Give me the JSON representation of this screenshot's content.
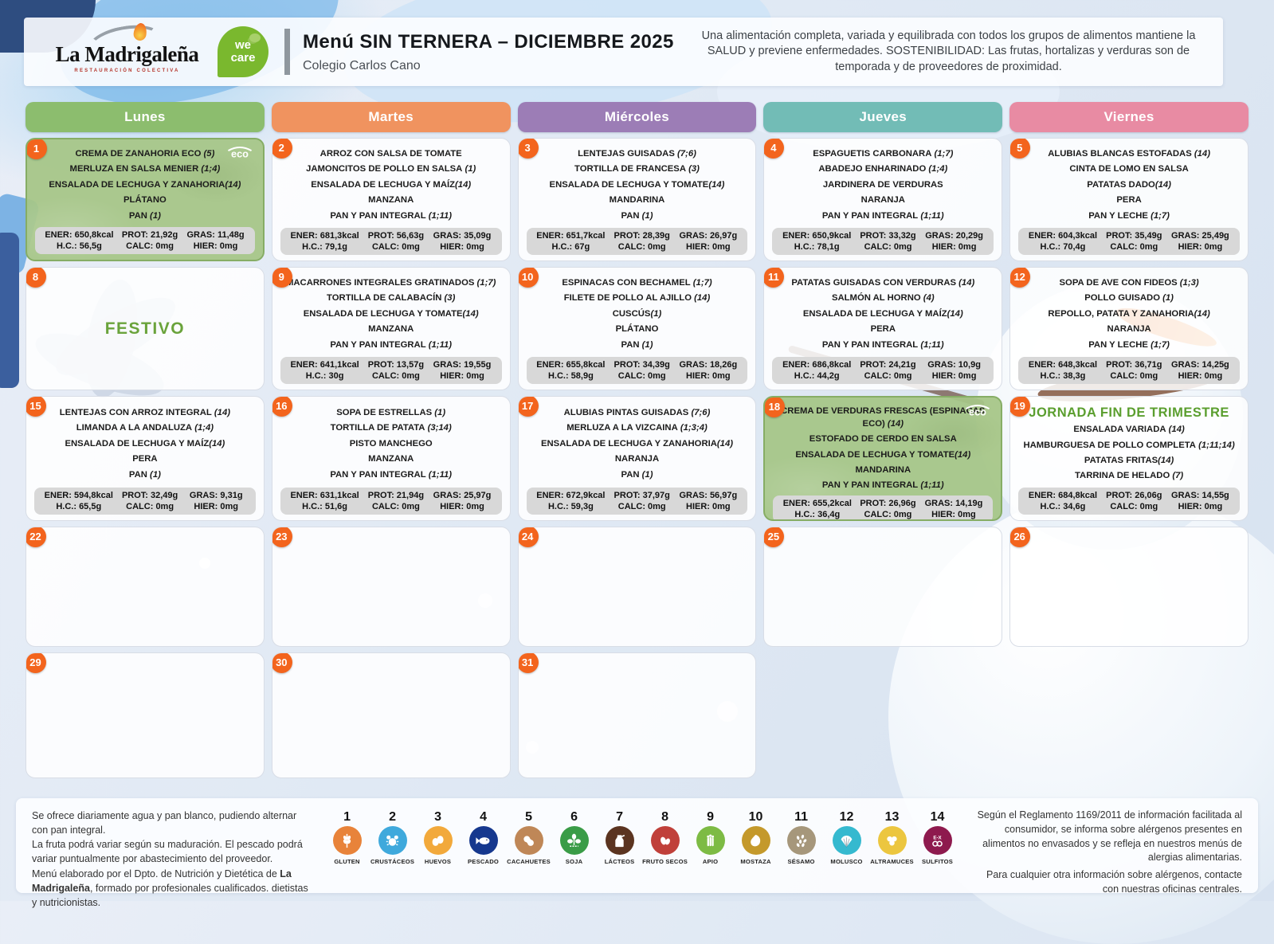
{
  "header": {
    "brand": "La Madrigaleña",
    "brand_tagline": "RESTAURACIÓN COLECTIVA",
    "we_care_line1": "we",
    "we_care_line2": "care",
    "title": "Menú SIN TERNERA – DICIEMBRE 2025",
    "subtitle": "Colegio Carlos Cano",
    "info_text": "Una alimentación completa, variada y equilibrada con todos los grupos de alimentos mantiene la SALUD y previene enfermedades. SOSTENIBILIDAD: Las frutas, hortalizas y verduras son de temporada y de proveedores de proximidad."
  },
  "calendar": {
    "eco_label": "eco",
    "weekdays": [
      {
        "label": "Lunes",
        "color": "#8cbd6e"
      },
      {
        "label": "Martes",
        "color": "#f0935f"
      },
      {
        "label": "Miércoles",
        "color": "#9c7db6"
      },
      {
        "label": "Jueves",
        "color": "#72bcb6"
      },
      {
        "label": "Viernes",
        "color": "#e88ba3"
      }
    ],
    "weeks": [
      [
        {
          "day": "1",
          "eco": true,
          "items": [
            {
              "t": "CREMA DE ZANAHORIA ECO",
              "a": " (5)"
            },
            {
              "t": "MERLUZA EN SALSA MENIER",
              "a": " (1;4)"
            },
            {
              "t": "ENSALADA DE LECHUGA Y ZANAHORIA",
              "a": "(14)"
            },
            {
              "t": "PLÁTANO",
              "a": ""
            },
            {
              "t": "PAN",
              "a": " (1)"
            }
          ],
          "nutrition": [
            "ENER: 650,8kcal",
            "PROT: 21,92g",
            "GRAS: 11,48g",
            "H.C.: 56,5g",
            "CALC: 0mg",
            "HIER: 0mg"
          ]
        },
        {
          "day": "2",
          "items": [
            {
              "t": "ARROZ CON SALSA DE TOMATE",
              "a": ""
            },
            {
              "t": "JAMONCITOS DE POLLO EN SALSA",
              "a": " (1)"
            },
            {
              "t": "ENSALADA DE LECHUGA Y MAÍZ",
              "a": "(14)"
            },
            {
              "t": "MANZANA",
              "a": ""
            },
            {
              "t": "PAN Y PAN INTEGRAL",
              "a": " (1;11)"
            }
          ],
          "nutrition": [
            "ENER: 681,3kcal",
            "PROT: 56,63g",
            "GRAS: 35,09g",
            "H.C.: 79,1g",
            "CALC: 0mg",
            "HIER: 0mg"
          ]
        },
        {
          "day": "3",
          "items": [
            {
              "t": "LENTEJAS GUISADAS",
              "a": " (7;6)"
            },
            {
              "t": "TORTILLA DE FRANCESA",
              "a": " (3)"
            },
            {
              "t": "ENSALADA DE LECHUGA Y TOMATE",
              "a": "(14)"
            },
            {
              "t": "MANDARINA",
              "a": ""
            },
            {
              "t": "PAN",
              "a": " (1)"
            }
          ],
          "nutrition": [
            "ENER: 651,7kcal",
            "PROT: 28,39g",
            "GRAS: 26,97g",
            "H.C.: 67g",
            "CALC: 0mg",
            "HIER: 0mg"
          ]
        },
        {
          "day": "4",
          "items": [
            {
              "t": "ESPAGUETIS CARBONARA",
              "a": " (1;7)"
            },
            {
              "t": "ABADEJO ENHARINADO",
              "a": " (1;4)"
            },
            {
              "t": "JARDINERA DE VERDURAS",
              "a": ""
            },
            {
              "t": "NARANJA",
              "a": ""
            },
            {
              "t": "PAN Y PAN INTEGRAL",
              "a": " (1;11)"
            }
          ],
          "nutrition": [
            "ENER: 650,9kcal",
            "PROT: 33,32g",
            "GRAS: 20,29g",
            "H.C.: 78,1g",
            "CALC: 0mg",
            "HIER: 0mg"
          ]
        },
        {
          "day": "5",
          "items": [
            {
              "t": "ALUBIAS BLANCAS ESTOFADAS",
              "a": " (14)"
            },
            {
              "t": "CINTA DE LOMO EN SALSA",
              "a": ""
            },
            {
              "t": "PATATAS DADO",
              "a": "(14)"
            },
            {
              "t": "PERA",
              "a": ""
            },
            {
              "t": "PAN Y LECHE",
              "a": " (1;7)"
            }
          ],
          "nutrition": [
            "ENER: 604,3kcal",
            "PROT: 35,49g",
            "GRAS: 25,49g",
            "H.C.: 70,4g",
            "CALC: 0mg",
            "HIER: 0mg"
          ]
        }
      ],
      [
        {
          "day": "8",
          "special": "FESTIVO"
        },
        {
          "day": "9",
          "items": [
            {
              "t": "MACARRONES INTEGRALES GRATINADOS",
              "a": " (1;7)"
            },
            {
              "t": "TORTILLA DE CALABACÍN",
              "a": " (3)"
            },
            {
              "t": "ENSALADA DE LECHUGA Y TOMATE",
              "a": "(14)"
            },
            {
              "t": "MANZANA",
              "a": ""
            },
            {
              "t": "PAN Y PAN INTEGRAL",
              "a": " (1;11)"
            }
          ],
          "nutrition": [
            "ENER: 641,1kcal",
            "PROT: 13,57g",
            "GRAS: 19,55g",
            "H.C.: 30g",
            "CALC: 0mg",
            "HIER: 0mg"
          ]
        },
        {
          "day": "10",
          "items": [
            {
              "t": "ESPINACAS CON BECHAMEL",
              "a": " (1;7)"
            },
            {
              "t": "FILETE DE POLLO AL AJILLO",
              "a": " (14)"
            },
            {
              "t": "CUSCÚS",
              "a": "(1)"
            },
            {
              "t": "PLÁTANO",
              "a": ""
            },
            {
              "t": "PAN",
              "a": " (1)"
            }
          ],
          "nutrition": [
            "ENER: 655,8kcal",
            "PROT: 34,39g",
            "GRAS: 18,26g",
            "H.C.: 58,9g",
            "CALC: 0mg",
            "HIER: 0mg"
          ]
        },
        {
          "day": "11",
          "items": [
            {
              "t": "PATATAS GUISADAS CON VERDURAS",
              "a": " (14)"
            },
            {
              "t": "SALMÓN AL HORNO",
              "a": " (4)"
            },
            {
              "t": "ENSALADA DE LECHUGA Y MAÍZ",
              "a": "(14)"
            },
            {
              "t": "PERA",
              "a": ""
            },
            {
              "t": "PAN Y PAN INTEGRAL",
              "a": " (1;11)"
            }
          ],
          "nutrition": [
            "ENER: 686,8kcal",
            "PROT: 24,21g",
            "GRAS: 10,9g",
            "H.C.: 44,2g",
            "CALC: 0mg",
            "HIER: 0mg"
          ]
        },
        {
          "day": "12",
          "items": [
            {
              "t": "SOPA DE AVE CON FIDEOS",
              "a": " (1;3)"
            },
            {
              "t": "POLLO GUISADO",
              "a": " (1)"
            },
            {
              "t": "REPOLLO, PATATA Y ZANAHORIA",
              "a": "(14)"
            },
            {
              "t": "NARANJA",
              "a": ""
            },
            {
              "t": "PAN Y LECHE",
              "a": " (1;7)"
            }
          ],
          "nutrition": [
            "ENER: 648,3kcal",
            "PROT: 36,71g",
            "GRAS: 14,25g",
            "H.C.: 38,3g",
            "CALC: 0mg",
            "HIER: 0mg"
          ]
        }
      ],
      [
        {
          "day": "15",
          "items": [
            {
              "t": "LENTEJAS CON ARROZ INTEGRAL",
              "a": " (14)"
            },
            {
              "t": "LIMANDA A LA ANDALUZA",
              "a": " (1;4)"
            },
            {
              "t": "ENSALADA DE LECHUGA Y MAÍZ",
              "a": "(14)"
            },
            {
              "t": "PERA",
              "a": ""
            },
            {
              "t": "PAN",
              "a": " (1)"
            }
          ],
          "nutrition": [
            "ENER: 594,8kcal",
            "PROT: 32,49g",
            "GRAS: 9,31g",
            "H.C.: 65,5g",
            "CALC: 0mg",
            "HIER: 0mg"
          ]
        },
        {
          "day": "16",
          "items": [
            {
              "t": "SOPA DE ESTRELLAS",
              "a": " (1)"
            },
            {
              "t": "TORTILLA DE PATATA",
              "a": " (3;14)"
            },
            {
              "t": "PISTO MANCHEGO",
              "a": ""
            },
            {
              "t": "MANZANA",
              "a": ""
            },
            {
              "t": "PAN Y PAN INTEGRAL",
              "a": " (1;11)"
            }
          ],
          "nutrition": [
            "ENER: 631,1kcal",
            "PROT: 21,94g",
            "GRAS: 25,97g",
            "H.C.: 51,6g",
            "CALC: 0mg",
            "HIER: 0mg"
          ]
        },
        {
          "day": "17",
          "items": [
            {
              "t": "ALUBIAS PINTAS GUISADAS",
              "a": " (7;6)"
            },
            {
              "t": "MERLUZA A LA VIZCAINA",
              "a": " (1;3;4)"
            },
            {
              "t": "ENSALADA DE LECHUGA Y ZANAHORIA",
              "a": "(14)"
            },
            {
              "t": "NARANJA",
              "a": ""
            },
            {
              "t": "PAN",
              "a": " (1)"
            }
          ],
          "nutrition": [
            "ENER: 672,9kcal",
            "PROT: 37,97g",
            "GRAS: 56,97g",
            "H.C.: 59,3g",
            "CALC: 0mg",
            "HIER: 0mg"
          ]
        },
        {
          "day": "18",
          "eco": true,
          "items": [
            {
              "t": "CREMA DE VERDURAS FRESCAS (ESPINACAS ECO)",
              "a": " (14)"
            },
            {
              "t": "ESTOFADO DE CERDO EN SALSA",
              "a": ""
            },
            {
              "t": "ENSALADA DE LECHUGA Y TOMATE",
              "a": "(14)"
            },
            {
              "t": "MANDARINA",
              "a": ""
            },
            {
              "t": "PAN Y PAN INTEGRAL",
              "a": " (1;11)"
            }
          ],
          "nutrition": [
            "ENER: 655,2kcal",
            "PROT: 26,96g",
            "GRAS: 14,19g",
            "H.C.: 36,4g",
            "CALC: 0mg",
            "HIER: 0mg"
          ]
        },
        {
          "day": "19",
          "title": "JORNADA FIN DE TRIMESTRE",
          "items": [
            {
              "t": "ENSALADA VARIADA",
              "a": " (14)"
            },
            {
              "t": "HAMBURGUESA DE POLLO COMPLETA",
              "a": " (1;11;14)"
            },
            {
              "t": "PATATAS FRITAS",
              "a": "(14)"
            },
            {
              "t": "TARRINA DE HELADO",
              "a": " (7)"
            }
          ],
          "nutrition": [
            "ENER: 684,8kcal",
            "PROT: 26,06g",
            "GRAS: 14,55g",
            "H.C.: 34,6g",
            "CALC: 0mg",
            "HIER: 0mg"
          ]
        }
      ],
      [
        {
          "day": "22"
        },
        {
          "day": "23"
        },
        {
          "day": "24"
        },
        {
          "day": "25"
        },
        {
          "day": "26"
        }
      ],
      [
        {
          "day": "29"
        },
        {
          "day": "30"
        },
        {
          "day": "31"
        },
        null,
        null
      ]
    ]
  },
  "footer": {
    "note1": "Se ofrece diariamente agua y pan blanco, pudiendo alternar con pan integral.",
    "note2": "La fruta podrá variar según su maduración. El pescado podrá variar puntualmente por abastecimiento del proveedor.",
    "note3_pre": "Menú elaborado por el Dpto. de Nutrición y Dietética de ",
    "note3_bold": "La Madrigaleña",
    "note3_post": ", formado por profesionales cualificados. dietistas y nutricionistas.",
    "allergens": [
      {
        "num": "1",
        "label": "GLUTEN",
        "color": "#e8833a",
        "icon": "wheat-icon"
      },
      {
        "num": "2",
        "label": "CRUSTÁCEOS",
        "color": "#3fa9dc",
        "icon": "crab-icon"
      },
      {
        "num": "3",
        "label": "HUEVOS",
        "color": "#f2a93b",
        "icon": "eggs-icon"
      },
      {
        "num": "4",
        "label": "PESCADO",
        "color": "#16388e",
        "icon": "fish-icon"
      },
      {
        "num": "5",
        "label": "CACAHUETES",
        "color": "#bf8757",
        "icon": "peanut-icon"
      },
      {
        "num": "6",
        "label": "SOJA",
        "color": "#3a9c47",
        "icon": "soy-icon"
      },
      {
        "num": "7",
        "label": "LÁCTEOS",
        "color": "#5b3420",
        "icon": "milk-jug-icon"
      },
      {
        "num": "8",
        "label": "FRUTO SECOS",
        "color": "#c0403a",
        "icon": "nuts-icon"
      },
      {
        "num": "9",
        "label": "APIO",
        "color": "#7dbb44",
        "icon": "celery-icon"
      },
      {
        "num": "10",
        "label": "MOSTAZA",
        "color": "#c4992b",
        "icon": "mustard-icon"
      },
      {
        "num": "11",
        "label": "SÉSAMO",
        "color": "#a6977b",
        "icon": "sesame-icon"
      },
      {
        "num": "12",
        "label": "MOLUSCO",
        "color": "#35b9cf",
        "icon": "shell-icon"
      },
      {
        "num": "13",
        "label": "ALTRAMUCES",
        "color": "#ecc63f",
        "icon": "lupin-icon"
      },
      {
        "num": "14",
        "label": "SULFITOS",
        "color": "#8e1a4e",
        "icon": "sulfites-icon"
      }
    ],
    "regulation1": "Según el Reglamento 1169/2011 de información facilitada al consumidor, se informa sobre alérgenos presentes en alimentos no envasados y se refleja en nuestros menús de alergias alimentarias.",
    "regulation2": "Para cualquier otra información sobre alérgenos, contacte con nuestras oficinas centrales."
  }
}
